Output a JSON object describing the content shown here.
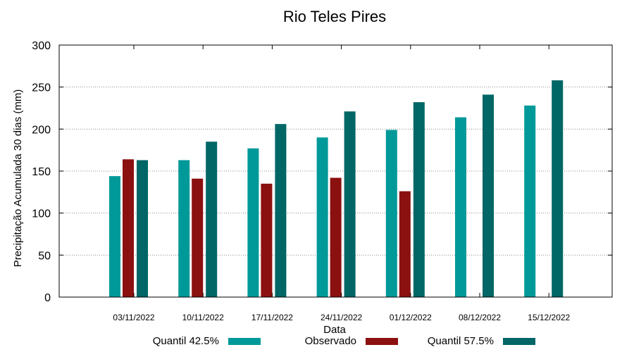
{
  "chart_data": {
    "type": "bar",
    "title": "Rio Teles Pires",
    "xlabel": "Data",
    "ylabel": "Precipitação Acumulada 30 dias (mm)",
    "ylim": [
      0,
      300
    ],
    "yticks": [
      0,
      50,
      100,
      150,
      200,
      250,
      300
    ],
    "ytick_labels": [
      "0",
      "50",
      "100",
      "150",
      "200",
      "250",
      "300"
    ],
    "grid": true,
    "legend_position": "bottom",
    "categories": [
      "03/11/2022",
      "10/11/2022",
      "17/11/2022",
      "24/11/2022",
      "01/12/2022",
      "08/12/2022",
      "15/12/2022"
    ],
    "series": [
      {
        "name": "Quantil 42.5%",
        "color": "#009999",
        "values": [
          144,
          163,
          177,
          190,
          199,
          214,
          228
        ]
      },
      {
        "name": "Observado",
        "color": "#8b1010",
        "values": [
          164,
          141,
          135,
          142,
          126,
          null,
          null
        ]
      },
      {
        "name": "Quantil 57.5%",
        "color": "#006666",
        "values": [
          163,
          185,
          206,
          221,
          232,
          241,
          258
        ]
      }
    ]
  }
}
